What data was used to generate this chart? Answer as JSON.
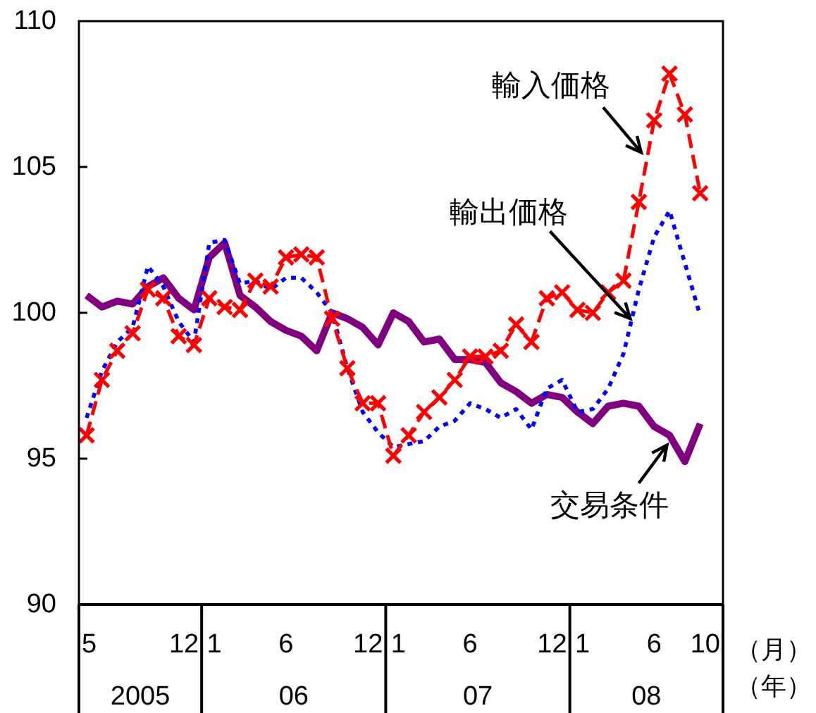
{
  "chart_data": {
    "type": "line",
    "x": [
      "2005-05",
      "2005-06",
      "2005-07",
      "2005-08",
      "2005-09",
      "2005-10",
      "2005-11",
      "2005-12",
      "2006-01",
      "2006-02",
      "2006-03",
      "2006-04",
      "2006-05",
      "2006-06",
      "2006-07",
      "2006-08",
      "2006-09",
      "2006-10",
      "2006-11",
      "2006-12",
      "2007-01",
      "2007-02",
      "2007-03",
      "2007-04",
      "2007-05",
      "2007-06",
      "2007-07",
      "2007-08",
      "2007-09",
      "2007-10",
      "2007-11",
      "2007-12",
      "2008-01",
      "2008-02",
      "2008-03",
      "2008-04",
      "2008-05",
      "2008-06",
      "2008-07",
      "2008-08",
      "2008-09"
    ],
    "xlim": [
      "2005-04-16",
      "2008-10-16"
    ],
    "xticks": [
      {
        "value": "2005-05",
        "label": "5"
      },
      {
        "value": "2005-12",
        "label": "12"
      },
      {
        "value": "2006-01",
        "label": "1"
      },
      {
        "value": "2006-06",
        "label": "6"
      },
      {
        "value": "2006-12",
        "label": "12"
      },
      {
        "value": "2007-01",
        "label": "1"
      },
      {
        "value": "2007-06",
        "label": "6"
      },
      {
        "value": "2007-12",
        "label": "12"
      },
      {
        "value": "2008-01",
        "label": "1"
      },
      {
        "value": "2008-06",
        "label": "6"
      },
      {
        "value": "2008-10",
        "label": "10"
      }
    ],
    "xlabel": "（月）",
    "annotations": [
      "2005",
      "06",
      "07",
      "08",
      "（年）",
      {
        "text": "輸入価格",
        "x": "2008-05-20",
        "y": 105.5
      },
      {
        "text": "輸出価格",
        "x": "2008-04-17",
        "y": 99.8
      },
      {
        "text": "交易条件",
        "x": "2008-06-26",
        "y": 95.9
      }
    ],
    "ylim": [
      90,
      110
    ],
    "yticks": [
      90,
      95,
      100,
      105,
      110
    ],
    "series": [
      {
        "color": "#800080",
        "line_style": "solid",
        "values": [
          100.6,
          100.2,
          100.4,
          100.3,
          100.9,
          101.2,
          100.5,
          100.1,
          101.9,
          102.4,
          100.6,
          100.2,
          99.7,
          99.4,
          99.2,
          98.7,
          100.0,
          99.8,
          99.5,
          98.9,
          100.0,
          99.7,
          99.0,
          99.1,
          98.4,
          98.4,
          98.3,
          97.6,
          97.3,
          96.9,
          97.2,
          97.1,
          96.6,
          96.2,
          96.8,
          96.9,
          96.8,
          96.1,
          95.8,
          94.9,
          96.2
        ]
      },
      {
        "color": "#0000ff",
        "line_style": "dotted",
        "values": [
          96.4,
          98.0,
          99.0,
          99.5,
          101.6,
          100.9,
          99.7,
          99.0,
          102.4,
          102.5,
          101.0,
          101.1,
          100.8,
          101.2,
          101.2,
          100.7,
          100.0,
          98.1,
          96.6,
          95.9,
          95.4,
          95.5,
          95.6,
          96.1,
          96.3,
          96.9,
          96.7,
          96.4,
          96.7,
          96.0,
          97.4,
          97.7,
          96.6,
          96.7,
          97.4,
          98.6,
          100.8,
          102.6,
          103.5,
          101.7,
          99.9
        ]
      },
      {
        "color": "#ff0000",
        "line_style": "dashed",
        "marker": "cross",
        "values": [
          95.8,
          97.7,
          98.7,
          99.3,
          100.8,
          100.5,
          99.2,
          98.9,
          100.5,
          100.2,
          100.1,
          101.1,
          100.9,
          101.9,
          102.0,
          101.9,
          99.8,
          98.1,
          96.9,
          96.9,
          95.1,
          95.8,
          96.6,
          97.1,
          97.7,
          98.5,
          98.5,
          98.7,
          99.6,
          99.0,
          100.5,
          100.7,
          100.1,
          100.0,
          100.7,
          101.1,
          103.8,
          106.6,
          108.2,
          106.8,
          104.1
        ]
      }
    ]
  }
}
